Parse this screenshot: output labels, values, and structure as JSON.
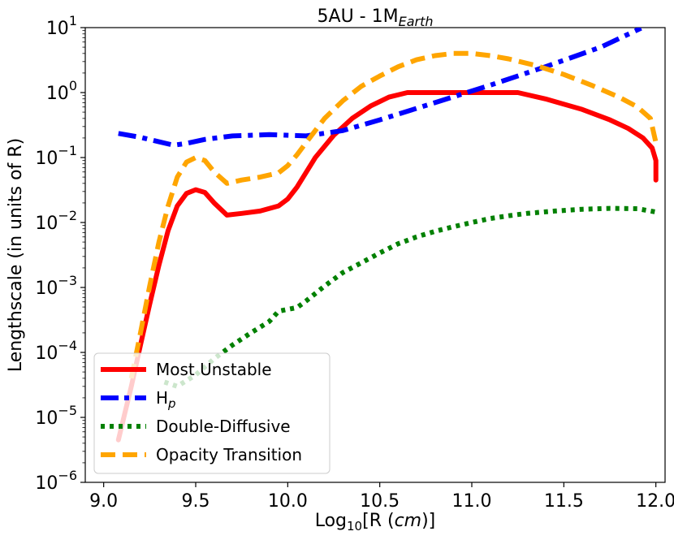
{
  "chart_data": {
    "type": "line",
    "title": "5AU - 1M",
    "title_subscript": "Earth",
    "xlabel_prefix": "Log",
    "xlabel_sub": "10",
    "xlabel_mid": "[R (",
    "xlabel_italic": "cm",
    "xlabel_suffix": ")]",
    "ylabel": "Lengthscale (in units of R)",
    "y_scale": "log",
    "xlim": [
      8.9,
      12.05
    ],
    "ylim_exp": [
      -6,
      1
    ],
    "x_ticks": [
      "9.0",
      "9.5",
      "10.0",
      "10.5",
      "11.0",
      "11.5",
      "12.0"
    ],
    "y_tick_base": "10",
    "y_tick_exponents": [
      "1",
      "0",
      "−1",
      "−2",
      "−3",
      "−4",
      "−5",
      "−6"
    ],
    "legend_position": "lower-left",
    "series": [
      {
        "name": "Most Unstable",
        "color": "#ff0000",
        "style": "solid",
        "x": [
          9.08,
          9.15,
          9.2,
          9.25,
          9.3,
          9.35,
          9.4,
          9.45,
          9.5,
          9.55,
          9.6,
          9.67,
          9.75,
          9.85,
          9.95,
          10.0,
          10.05,
          10.15,
          10.25,
          10.35,
          10.45,
          10.55,
          10.65,
          10.8,
          11.0,
          11.25,
          11.4,
          11.6,
          11.75,
          11.85,
          11.93,
          11.98,
          12.0,
          12.0
        ],
        "y": [
          4.5e-06,
          3e-05,
          0.00013,
          0.00055,
          0.0022,
          0.0075,
          0.018,
          0.028,
          0.032,
          0.029,
          0.02,
          0.013,
          0.0138,
          0.015,
          0.018,
          0.023,
          0.035,
          0.1,
          0.22,
          0.4,
          0.62,
          0.85,
          1.0,
          1.0,
          1.0,
          1.0,
          0.8,
          0.55,
          0.38,
          0.28,
          0.2,
          0.14,
          0.09,
          0.045
        ]
      },
      {
        "name": "H",
        "name_sub": "p",
        "color": "#0000ff",
        "style": "dashdot",
        "x": [
          9.08,
          9.2,
          9.3,
          9.38,
          9.45,
          9.55,
          9.7,
          9.9,
          10.1,
          10.3,
          10.5,
          10.8,
          11.1,
          11.4,
          11.7,
          11.92
        ],
        "y": [
          0.235,
          0.205,
          0.175,
          0.155,
          0.165,
          0.19,
          0.215,
          0.225,
          0.215,
          0.26,
          0.38,
          0.7,
          1.3,
          2.5,
          5.0,
          9.8
        ]
      },
      {
        "name": "Double-Diffusive",
        "color": "#008000",
        "style": "dotted",
        "x": [
          9.33,
          9.4,
          9.5,
          9.6,
          9.7,
          9.8,
          9.9,
          9.95,
          10.0,
          10.05,
          10.1,
          10.2,
          10.3,
          10.4,
          10.5,
          10.6,
          10.7,
          10.8,
          10.9,
          11.0,
          11.1,
          11.2,
          11.3,
          11.45,
          11.6,
          11.75,
          11.9,
          12.0
        ],
        "y": [
          3.5e-05,
          3e-05,
          4.5e-05,
          8e-05,
          0.00013,
          0.0002,
          0.0003,
          0.00043,
          0.00046,
          0.00049,
          0.00062,
          0.00105,
          0.0017,
          0.0024,
          0.0034,
          0.0047,
          0.006,
          0.0073,
          0.0086,
          0.01,
          0.0115,
          0.0127,
          0.0138,
          0.015,
          0.016,
          0.0165,
          0.0163,
          0.0145
        ]
      },
      {
        "name": "Opacity Transition",
        "color": "#ffa500",
        "style": "dashed",
        "x": [
          9.15,
          9.2,
          9.25,
          9.3,
          9.35,
          9.4,
          9.45,
          9.5,
          9.55,
          9.6,
          9.67,
          9.75,
          9.85,
          9.95,
          10.0,
          10.05,
          10.1,
          10.2,
          10.3,
          10.4,
          10.5,
          10.6,
          10.7,
          10.8,
          10.9,
          11.0,
          11.1,
          11.2,
          11.35,
          11.5,
          11.65,
          11.8,
          11.9,
          11.97,
          12.0
        ],
        "y": [
          4e-05,
          0.0002,
          0.00105,
          0.005,
          0.018,
          0.05,
          0.085,
          0.1,
          0.09,
          0.06,
          0.04,
          0.045,
          0.05,
          0.058,
          0.075,
          0.11,
          0.17,
          0.4,
          0.75,
          1.25,
          1.8,
          2.5,
          3.2,
          3.7,
          4.0,
          4.0,
          3.7,
          3.3,
          2.6,
          1.9,
          1.3,
          0.85,
          0.6,
          0.4,
          0.17
        ]
      }
    ]
  }
}
